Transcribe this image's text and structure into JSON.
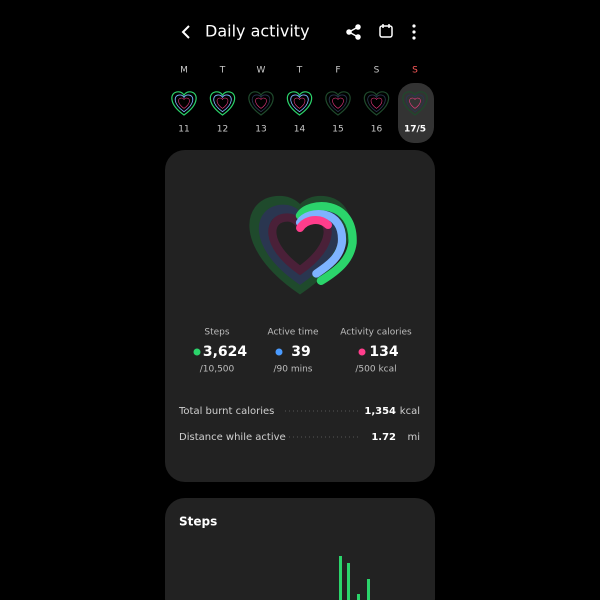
{
  "header": {
    "title": "Daily activity"
  },
  "week": {
    "days": [
      {
        "letter": "M",
        "date": "11"
      },
      {
        "letter": "T",
        "date": "12"
      },
      {
        "letter": "W",
        "date": "13"
      },
      {
        "letter": "T",
        "date": "14"
      },
      {
        "letter": "F",
        "date": "15"
      },
      {
        "letter": "S",
        "date": "16"
      },
      {
        "letter": "S",
        "date": "17/5"
      }
    ]
  },
  "summary": {
    "stats": [
      {
        "label": "Steps",
        "value": "3,624",
        "goal": "/10,500"
      },
      {
        "label": "Active time",
        "value": "39",
        "goal": "/90 mins"
      },
      {
        "label": "Activity calories",
        "value": "134",
        "goal": "/500 kcal"
      }
    ],
    "rows": [
      {
        "label": "Total burnt calories",
        "value": "1,354",
        "unit": "kcal"
      },
      {
        "label": "Distance while active",
        "value": "1.72",
        "unit": "mi"
      }
    ]
  },
  "steps_card": {
    "title": "Steps"
  }
}
